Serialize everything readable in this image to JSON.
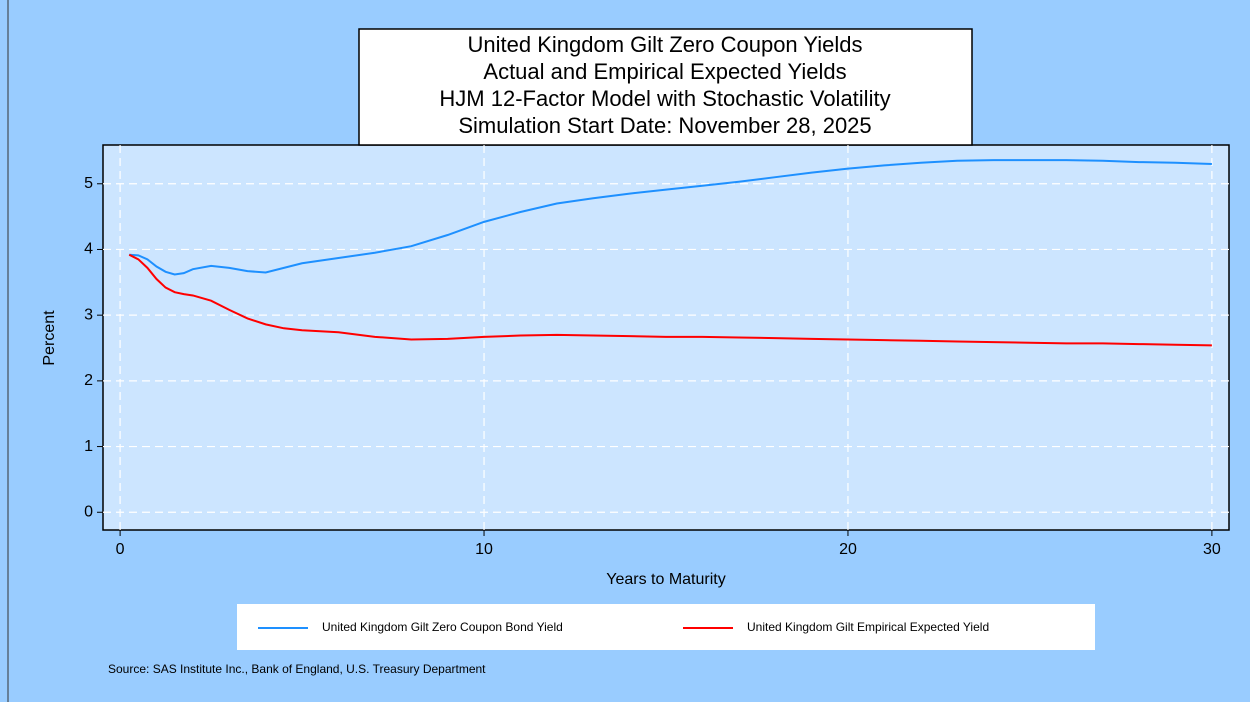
{
  "chart_data": {
    "type": "line",
    "title": [
      "United Kingdom Gilt Zero Coupon Yields",
      "Actual and Empirical Expected Yields",
      "HJM 12-Factor Model with Stochastic Volatility",
      "Simulation Start Date: November 28, 2025"
    ],
    "x_label": "Years to Maturity",
    "y_label": "Percent",
    "source": "Source: SAS Institute Inc., Bank of England, U.S. Treasury Department",
    "x": [
      0.25,
      0.5,
      0.75,
      1,
      1.25,
      1.5,
      1.75,
      2,
      2.5,
      3,
      3.5,
      4,
      4.5,
      5,
      6,
      7,
      8,
      9,
      10,
      11,
      12,
      13,
      14,
      15,
      16,
      17,
      18,
      19,
      20,
      21,
      22,
      23,
      24,
      25,
      26,
      27,
      28,
      29,
      30
    ],
    "series": [
      {
        "name": "United Kingdom Gilt Zero Coupon Bond Yield",
        "color": "#1e90ff",
        "values": [
          3.92,
          3.91,
          3.85,
          3.74,
          3.66,
          3.62,
          3.64,
          3.7,
          3.75,
          3.72,
          3.67,
          3.65,
          3.72,
          3.79,
          3.87,
          3.95,
          4.05,
          4.22,
          4.42,
          4.57,
          4.7,
          4.78,
          4.85,
          4.91,
          4.97,
          5.03,
          5.1,
          5.17,
          5.23,
          5.28,
          5.32,
          5.35,
          5.36,
          5.36,
          5.36,
          5.35,
          5.33,
          5.32,
          5.3
        ]
      },
      {
        "name": "United Kingdom Gilt Empirical Expected Yield",
        "color": "#ff0000",
        "values": [
          3.92,
          3.85,
          3.72,
          3.55,
          3.42,
          3.35,
          3.32,
          3.3,
          3.22,
          3.08,
          2.95,
          2.86,
          2.8,
          2.77,
          2.74,
          2.67,
          2.63,
          2.64,
          2.67,
          2.69,
          2.7,
          2.69,
          2.68,
          2.67,
          2.67,
          2.66,
          2.65,
          2.64,
          2.63,
          2.62,
          2.61,
          2.6,
          2.59,
          2.58,
          2.57,
          2.57,
          2.56,
          2.55,
          2.54
        ]
      }
    ],
    "xlim": [
      -0.47,
      30.47
    ],
    "ylim": [
      -0.27,
      5.59
    ],
    "xticks": [
      0,
      10,
      20,
      30
    ],
    "yticks": [
      0,
      1,
      2,
      3,
      4,
      5
    ],
    "grid": true
  }
}
